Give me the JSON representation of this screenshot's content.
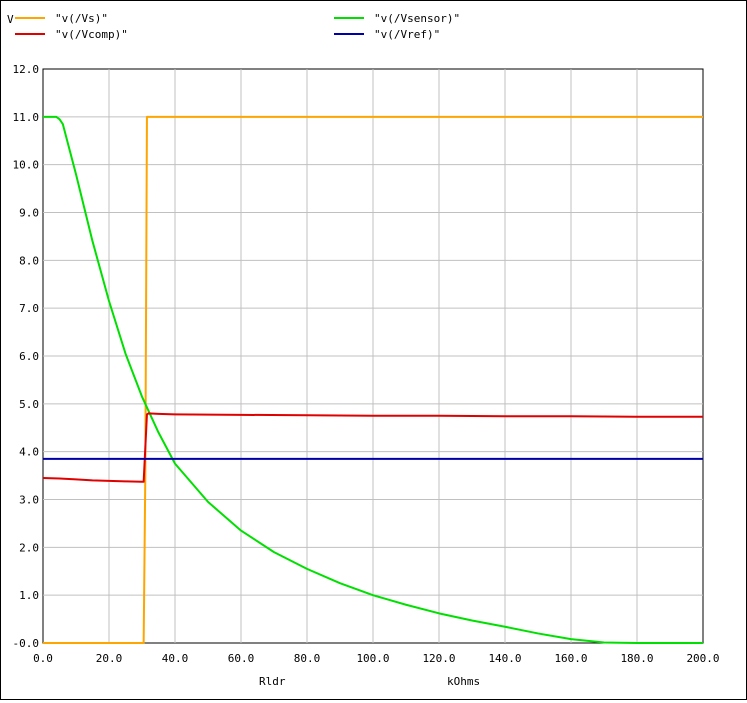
{
  "chart_data": {
    "type": "line",
    "y_unit_label": "V",
    "xlabel": "Rldr",
    "x_unit_label": "kOhms",
    "xlim": [
      0,
      200
    ],
    "ylim": [
      0,
      12
    ],
    "grid": true,
    "legend_placement": "top",
    "x_ticks": [
      {
        "value": 0,
        "label": "0.0"
      },
      {
        "value": 20,
        "label": "20.0"
      },
      {
        "value": 40,
        "label": "40.0"
      },
      {
        "value": 60,
        "label": "60.0"
      },
      {
        "value": 80,
        "label": "80.0"
      },
      {
        "value": 100,
        "label": "100.0"
      },
      {
        "value": 120,
        "label": "120.0"
      },
      {
        "value": 140,
        "label": "140.0"
      },
      {
        "value": 160,
        "label": "160.0"
      },
      {
        "value": 180,
        "label": "180.0"
      },
      {
        "value": 200,
        "label": "200.0"
      }
    ],
    "y_ticks": [
      {
        "value": 0,
        "label": "-0.0"
      },
      {
        "value": 1,
        "label": "1.0"
      },
      {
        "value": 2,
        "label": "2.0"
      },
      {
        "value": 3,
        "label": "3.0"
      },
      {
        "value": 4,
        "label": "4.0"
      },
      {
        "value": 5,
        "label": "5.0"
      },
      {
        "value": 6,
        "label": "6.0"
      },
      {
        "value": 7,
        "label": "7.0"
      },
      {
        "value": 8,
        "label": "8.0"
      },
      {
        "value": 9,
        "label": "9.0"
      },
      {
        "value": 10,
        "label": "10.0"
      },
      {
        "value": 11,
        "label": "11.0"
      },
      {
        "value": 12,
        "label": "12.0"
      }
    ],
    "series": [
      {
        "name": "\"v(/Vs)\"",
        "color": "#ffa500",
        "x": [
          0,
          30.5,
          31,
          31.5,
          200
        ],
        "y": [
          0,
          0,
          3.5,
          11.0,
          11.0
        ]
      },
      {
        "name": "\"v(/Vsensor)\"",
        "color": "#00e000",
        "x": [
          0,
          4,
          5,
          6,
          10,
          15,
          20,
          25,
          30,
          35,
          40,
          50,
          60,
          70,
          80,
          90,
          100,
          110,
          120,
          130,
          140,
          150,
          160,
          170,
          180,
          190,
          200
        ],
        "y": [
          11.0,
          11.0,
          10.95,
          10.85,
          9.8,
          8.4,
          7.15,
          6.05,
          5.15,
          4.4,
          3.75,
          2.95,
          2.35,
          1.9,
          1.55,
          1.25,
          1.0,
          0.8,
          0.62,
          0.47,
          0.34,
          0.2,
          0.08,
          0.01,
          0.0,
          0.0,
          0.0
        ]
      },
      {
        "name": "\"v(/Vcomp)\"",
        "color": "#e00000",
        "x": [
          0,
          5,
          10,
          15,
          20,
          25,
          30,
          30.5,
          31.5,
          32,
          35,
          40,
          60,
          80,
          100,
          120,
          140,
          160,
          180,
          200
        ],
        "y": [
          3.45,
          3.44,
          3.42,
          3.4,
          3.39,
          3.38,
          3.37,
          3.37,
          4.78,
          4.8,
          4.79,
          4.78,
          4.77,
          4.76,
          4.75,
          4.75,
          4.74,
          4.74,
          4.73,
          4.73
        ]
      },
      {
        "name": "\"v(/Vref)\"",
        "color": "#0000aa",
        "x": [
          0,
          200
        ],
        "y": [
          3.85,
          3.85
        ]
      }
    ]
  }
}
